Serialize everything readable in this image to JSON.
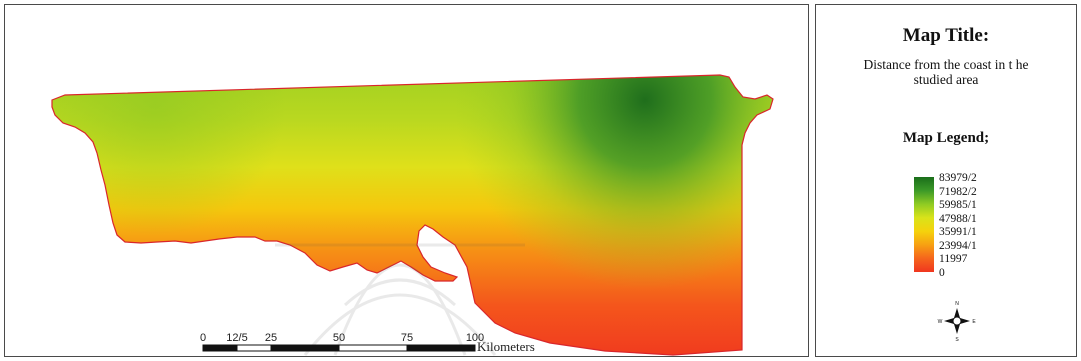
{
  "legend": {
    "title": "Map Title:",
    "subtitle": "Distance from the coast in t he studied area",
    "heading": "Map Legend;",
    "classes": [
      "83979/2",
      "71982/2",
      "59985/1",
      "47988/1",
      "35991/1",
      "23994/1",
      "11997",
      "0"
    ],
    "ramp_colors": [
      "#1a6e1a",
      "#3c9a28",
      "#8fcb23",
      "#d9e31a",
      "#f5d20c",
      "#f7a012",
      "#f5651c",
      "#f0361f"
    ]
  },
  "scale_bar": {
    "ticks": [
      "0",
      "12/5",
      "25",
      "50",
      "75",
      "100"
    ],
    "unit": "Kilometers"
  },
  "compass": {
    "icon": "north-arrow-icon",
    "directions": [
      "N",
      "E",
      "S",
      "W"
    ]
  },
  "colors": {
    "boundary": "#d9262b",
    "frame": "#4a4a4a"
  }
}
